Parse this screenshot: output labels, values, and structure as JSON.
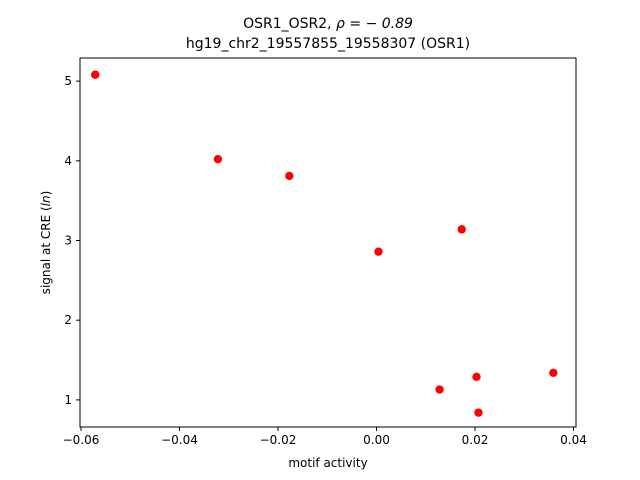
{
  "chart_data": {
    "type": "scatter",
    "title_line1_prefix": "OSR1_OSR2, ",
    "title_line1_rho": "ρ = − 0.89",
    "title_line2": "hg19_chr2_19557855_19558307 (OSR1)",
    "xlabel": "motif activity",
    "ylabel_prefix": "signal at CRE (",
    "ylabel_italic": "ln",
    "ylabel_suffix": ")",
    "xlim": [
      -0.0602,
      0.0405
    ],
    "ylim": [
      0.66,
      5.29
    ],
    "xticks": [
      -0.06,
      -0.04,
      -0.02,
      0.0,
      0.02,
      0.04
    ],
    "xtick_labels": [
      "−0.06",
      "−0.04",
      "−0.02",
      "0.00",
      "0.02",
      "0.04"
    ],
    "yticks": [
      1,
      2,
      3,
      4,
      5
    ],
    "ytick_labels": [
      "1",
      "2",
      "3",
      "4",
      "5"
    ],
    "marker_color": "#ff0000",
    "grid": false,
    "points": [
      {
        "x": -0.0571,
        "y": 5.08
      },
      {
        "x": -0.0322,
        "y": 4.02
      },
      {
        "x": -0.0177,
        "y": 3.81
      },
      {
        "x": 0.0004,
        "y": 2.86
      },
      {
        "x": 0.0173,
        "y": 3.14
      },
      {
        "x": 0.0128,
        "y": 1.13
      },
      {
        "x": 0.0203,
        "y": 1.29
      },
      {
        "x": 0.0207,
        "y": 0.84
      },
      {
        "x": 0.0359,
        "y": 1.34
      }
    ]
  }
}
